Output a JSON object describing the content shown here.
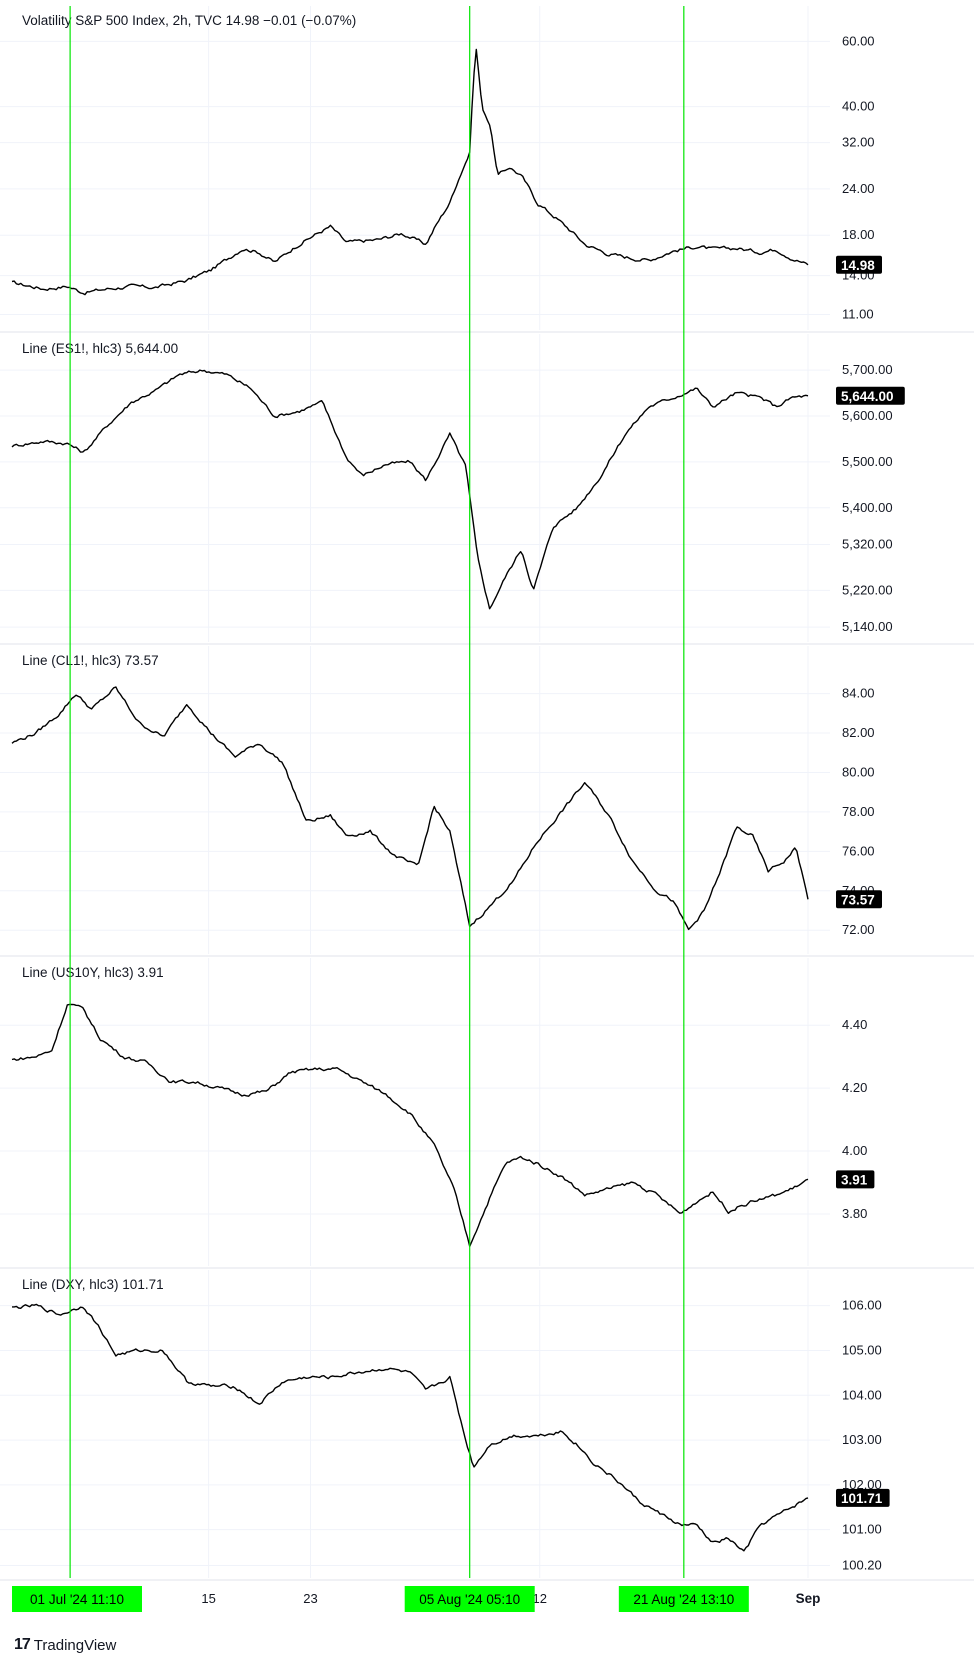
{
  "branding": {
    "logo_glyph": "17",
    "name": "TradingView"
  },
  "x_axis": {
    "labels": [
      {
        "text": "15",
        "bold": false
      },
      {
        "text": "23",
        "bold": false
      },
      {
        "text": "12",
        "bold": false
      },
      {
        "text": "Sep",
        "bold": true
      }
    ],
    "date_badges": [
      "01 Jul '24    11:10",
      "05 Aug '24    05:10",
      "21 Aug '24    13:10"
    ]
  },
  "colors": {
    "line": "#000000",
    "marker": "#00e600",
    "grid": "#f0f3fa",
    "badge_bg": "#000000",
    "date_badge_bg": "#00ff00"
  },
  "chart_data": [
    {
      "type": "line",
      "legend": "Volatility S&P 500 Index, 2h, TVC  14.98  −0.01 (−0.07%)",
      "scale": "log",
      "ylim": [
        10.5,
        66
      ],
      "ticks": [
        "60.00",
        "40.00",
        "32.00",
        "24.00",
        "18.00",
        "14.00",
        "11.00"
      ],
      "current_label": "14.98",
      "current": 14.98,
      "anchors": [
        [
          0,
          13.4
        ],
        [
          0.04,
          12.9
        ],
        [
          0.07,
          13.1
        ],
        [
          0.09,
          12.6
        ],
        [
          0.12,
          12.9
        ],
        [
          0.15,
          13.1
        ],
        [
          0.18,
          13.0
        ],
        [
          0.22,
          13.6
        ],
        [
          0.25,
          14.5
        ],
        [
          0.27,
          15.5
        ],
        [
          0.29,
          16.6
        ],
        [
          0.31,
          16.2
        ],
        [
          0.33,
          15.2
        ],
        [
          0.36,
          17.0
        ],
        [
          0.4,
          19.0
        ],
        [
          0.42,
          17.2
        ],
        [
          0.46,
          17.5
        ],
        [
          0.49,
          18.2
        ],
        [
          0.52,
          17.0
        ],
        [
          0.55,
          22.0
        ],
        [
          0.575,
          30.0
        ],
        [
          0.583,
          58.0
        ],
        [
          0.59,
          40.0
        ],
        [
          0.6,
          36.0
        ],
        [
          0.61,
          26.0
        ],
        [
          0.625,
          27.5
        ],
        [
          0.64,
          26.0
        ],
        [
          0.66,
          22.0
        ],
        [
          0.69,
          19.5
        ],
        [
          0.72,
          17.0
        ],
        [
          0.75,
          16.0
        ],
        [
          0.78,
          15.6
        ],
        [
          0.8,
          15.4
        ],
        [
          0.83,
          16.3
        ],
        [
          0.86,
          16.8
        ],
        [
          0.88,
          16.5
        ],
        [
          0.91,
          16.6
        ],
        [
          0.94,
          16.2
        ],
        [
          0.96,
          16.5
        ],
        [
          0.98,
          15.6
        ],
        [
          1.0,
          14.98
        ]
      ]
    },
    {
      "type": "line",
      "legend": "Line (ES1!, hlc3)  5,644.00",
      "scale": "linear",
      "ylim": [
        5125,
        5735
      ],
      "ticks": [
        "5,700.00",
        "5,600.00",
        "5,500.00",
        "5,400.00",
        "5,320.00",
        "5,220.00",
        "5,140.00"
      ],
      "current_label": "5,644.00",
      "current": 5644,
      "anchors": [
        [
          0,
          5535
        ],
        [
          0.04,
          5545
        ],
        [
          0.07,
          5540
        ],
        [
          0.09,
          5520
        ],
        [
          0.12,
          5580
        ],
        [
          0.15,
          5630
        ],
        [
          0.18,
          5655
        ],
        [
          0.21,
          5690
        ],
        [
          0.24,
          5700
        ],
        [
          0.27,
          5690
        ],
        [
          0.3,
          5660
        ],
        [
          0.33,
          5600
        ],
        [
          0.36,
          5610
        ],
        [
          0.39,
          5630
        ],
        [
          0.42,
          5510
        ],
        [
          0.44,
          5470
        ],
        [
          0.47,
          5495
        ],
        [
          0.5,
          5500
        ],
        [
          0.52,
          5460
        ],
        [
          0.55,
          5560
        ],
        [
          0.57,
          5490
        ],
        [
          0.585,
          5290
        ],
        [
          0.6,
          5180
        ],
        [
          0.62,
          5250
        ],
        [
          0.64,
          5310
        ],
        [
          0.655,
          5220
        ],
        [
          0.68,
          5360
        ],
        [
          0.71,
          5400
        ],
        [
          0.74,
          5470
        ],
        [
          0.77,
          5560
        ],
        [
          0.8,
          5620
        ],
        [
          0.83,
          5640
        ],
        [
          0.86,
          5660
        ],
        [
          0.88,
          5620
        ],
        [
          0.91,
          5650
        ],
        [
          0.94,
          5640
        ],
        [
          0.96,
          5620
        ],
        [
          0.98,
          5640
        ],
        [
          1.0,
          5644
        ]
      ]
    },
    {
      "type": "line",
      "legend": "Line (CL1!, hlc3)  73.57",
      "scale": "linear",
      "ylim": [
        71.2,
        85.4
      ],
      "ticks": [
        "84.00",
        "82.00",
        "80.00",
        "78.00",
        "76.00",
        "74.00",
        "72.00"
      ],
      "current_label": "73.57",
      "current": 73.57,
      "anchors": [
        [
          0,
          81.5
        ],
        [
          0.03,
          82.0
        ],
        [
          0.06,
          83.0
        ],
        [
          0.08,
          84.0
        ],
        [
          0.1,
          83.2
        ],
        [
          0.13,
          84.3
        ],
        [
          0.16,
          82.5
        ],
        [
          0.19,
          81.8
        ],
        [
          0.22,
          83.5
        ],
        [
          0.25,
          82.0
        ],
        [
          0.28,
          80.8
        ],
        [
          0.31,
          81.5
        ],
        [
          0.34,
          80.5
        ],
        [
          0.37,
          77.5
        ],
        [
          0.4,
          77.8
        ],
        [
          0.42,
          76.8
        ],
        [
          0.45,
          77.0
        ],
        [
          0.48,
          75.8
        ],
        [
          0.51,
          75.2
        ],
        [
          0.53,
          78.3
        ],
        [
          0.55,
          77.0
        ],
        [
          0.575,
          72.2
        ],
        [
          0.6,
          73.2
        ],
        [
          0.63,
          74.5
        ],
        [
          0.66,
          76.5
        ],
        [
          0.69,
          78.0
        ],
        [
          0.72,
          79.5
        ],
        [
          0.75,
          77.8
        ],
        [
          0.78,
          75.5
        ],
        [
          0.81,
          74.0
        ],
        [
          0.83,
          73.5
        ],
        [
          0.85,
          72.0
        ],
        [
          0.87,
          73.0
        ],
        [
          0.89,
          75.0
        ],
        [
          0.91,
          77.2
        ],
        [
          0.93,
          76.8
        ],
        [
          0.95,
          75.0
        ],
        [
          0.97,
          75.5
        ],
        [
          0.985,
          76.2
        ],
        [
          1.0,
          73.57
        ]
      ]
    },
    {
      "type": "line",
      "legend": "Line (US10Y, hlc3)  3.91",
      "scale": "linear",
      "ylim": [
        3.66,
        4.55
      ],
      "ticks": [
        "4.40",
        "4.20",
        "4.00",
        "3.80"
      ],
      "current_label": "3.91",
      "current": 3.91,
      "anchors": [
        [
          0,
          4.29
        ],
        [
          0.03,
          4.3
        ],
        [
          0.05,
          4.32
        ],
        [
          0.07,
          4.47
        ],
        [
          0.09,
          4.45
        ],
        [
          0.11,
          4.36
        ],
        [
          0.14,
          4.3
        ],
        [
          0.17,
          4.28
        ],
        [
          0.2,
          4.22
        ],
        [
          0.23,
          4.22
        ],
        [
          0.26,
          4.2
        ],
        [
          0.29,
          4.18
        ],
        [
          0.32,
          4.19
        ],
        [
          0.35,
          4.25
        ],
        [
          0.38,
          4.26
        ],
        [
          0.41,
          4.26
        ],
        [
          0.44,
          4.22
        ],
        [
          0.47,
          4.18
        ],
        [
          0.5,
          4.12
        ],
        [
          0.53,
          4.02
        ],
        [
          0.555,
          3.88
        ],
        [
          0.575,
          3.7
        ],
        [
          0.6,
          3.85
        ],
        [
          0.62,
          3.96
        ],
        [
          0.64,
          3.98
        ],
        [
          0.66,
          3.96
        ],
        [
          0.69,
          3.92
        ],
        [
          0.72,
          3.86
        ],
        [
          0.75,
          3.88
        ],
        [
          0.78,
          3.9
        ],
        [
          0.81,
          3.86
        ],
        [
          0.84,
          3.8
        ],
        [
          0.86,
          3.84
        ],
        [
          0.88,
          3.87
        ],
        [
          0.9,
          3.81
        ],
        [
          0.93,
          3.84
        ],
        [
          0.96,
          3.86
        ],
        [
          0.98,
          3.88
        ],
        [
          1.0,
          3.91
        ]
      ]
    },
    {
      "type": "line",
      "legend": "Line (DXY, hlc3)  101.71",
      "scale": "linear",
      "ylim": [
        100.1,
        106.35
      ],
      "ticks": [
        "106.00",
        "105.00",
        "104.00",
        "103.00",
        "102.00",
        "101.00",
        "100.20"
      ],
      "current_label": "101.71",
      "current": 101.71,
      "anchors": [
        [
          0,
          105.95
        ],
        [
          0.03,
          106.0
        ],
        [
          0.06,
          105.8
        ],
        [
          0.09,
          106.0
        ],
        [
          0.11,
          105.5
        ],
        [
          0.13,
          104.9
        ],
        [
          0.16,
          105.0
        ],
        [
          0.19,
          105.0
        ],
        [
          0.22,
          104.3
        ],
        [
          0.25,
          104.2
        ],
        [
          0.28,
          104.2
        ],
        [
          0.31,
          103.8
        ],
        [
          0.34,
          104.3
        ],
        [
          0.37,
          104.4
        ],
        [
          0.4,
          104.4
        ],
        [
          0.43,
          104.5
        ],
        [
          0.47,
          104.6
        ],
        [
          0.5,
          104.5
        ],
        [
          0.52,
          104.1
        ],
        [
          0.55,
          104.4
        ],
        [
          0.57,
          103.0
        ],
        [
          0.58,
          102.4
        ],
        [
          0.6,
          102.9
        ],
        [
          0.63,
          103.1
        ],
        [
          0.66,
          103.1
        ],
        [
          0.69,
          103.2
        ],
        [
          0.71,
          102.9
        ],
        [
          0.73,
          102.5
        ],
        [
          0.76,
          102.1
        ],
        [
          0.79,
          101.6
        ],
        [
          0.82,
          101.3
        ],
        [
          0.84,
          101.1
        ],
        [
          0.86,
          101.1
        ],
        [
          0.88,
          100.7
        ],
        [
          0.9,
          100.8
        ],
        [
          0.92,
          100.5
        ],
        [
          0.94,
          101.1
        ],
        [
          0.96,
          101.3
        ],
        [
          0.98,
          101.5
        ],
        [
          1.0,
          101.71
        ]
      ]
    }
  ]
}
